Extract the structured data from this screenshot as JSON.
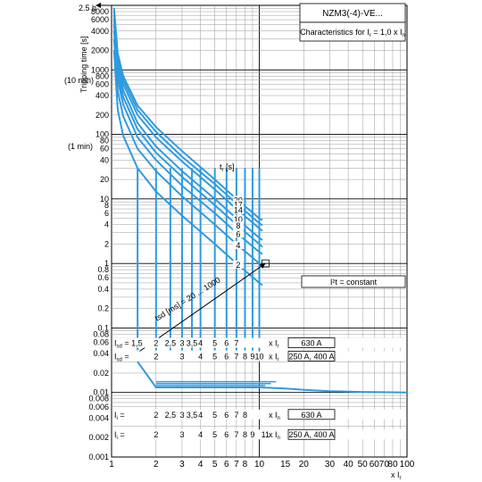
{
  "chart_data": {
    "type": "line",
    "title": "NZM3(-4)-VE...",
    "subtitle_main": "Characteristics for I",
    "subtitle_sub1": "r",
    "subtitle_mid": " = 1,0 x I",
    "subtitle_sub2": "n",
    "ylabel_main": "Tripping time [s]",
    "ylabel_top": "2.5 h",
    "ylabel_10min": "(10 min)",
    "ylabel_1min": "(1 min)",
    "xlabel": "x I",
    "xlabel_sub": "r",
    "x_scale": "log",
    "y_scale": "log",
    "xlim": [
      1,
      100
    ],
    "ylim": [
      0.001,
      10000
    ],
    "grid": true,
    "x_ticks": [
      "1",
      "2",
      "3",
      "4",
      "5",
      "6",
      "7",
      "8",
      "10",
      "15",
      "20",
      "30",
      "40",
      "50",
      "60",
      "70",
      "80",
      "100"
    ],
    "x_tick_values": [
      1,
      2,
      3,
      4,
      5,
      6,
      7,
      8,
      10,
      15,
      20,
      30,
      40,
      50,
      60,
      70,
      80,
      100
    ],
    "y_ticks": [
      "8000",
      "6000",
      "4000",
      "2000",
      "1000",
      "800",
      "600",
      "400",
      "200",
      "100",
      "80",
      "60",
      "40",
      "20",
      "10",
      "8",
      "6",
      "4",
      "2",
      "1",
      "0.8",
      "0.6",
      "0.4",
      "0.2",
      "0.1",
      "0.08",
      "0.06",
      "0.04",
      "0.02",
      "0.01",
      "0.008",
      "0.006",
      "0.004",
      "0.002",
      "0.001"
    ],
    "y_tick_values": [
      8000,
      6000,
      4000,
      2000,
      1000,
      800,
      600,
      400,
      200,
      100,
      80,
      60,
      40,
      20,
      10,
      8,
      6,
      4,
      2,
      1,
      0.8,
      0.6,
      0.4,
      0.2,
      0.1,
      0.08,
      0.06,
      0.04,
      0.02,
      0.01,
      0.008,
      0.006,
      0.004,
      0.002,
      0.001
    ],
    "tr_label": "t",
    "tr_sub": "r",
    "tr_unit": " [s]",
    "tr_values": [
      "20",
      "17",
      "14",
      "10",
      "8",
      "6",
      "4",
      "2"
    ],
    "tsd_label": "tsd [ms] = 20 ... 1000",
    "i2t_label": "I²t = constant",
    "tol_label": "I²t",
    "series": [
      {
        "tr": 20,
        "x": [
          1.04,
          1.1,
          1.2,
          1.5,
          2,
          3,
          5,
          7,
          10,
          10.5
        ],
        "y": [
          9000,
          1800,
          800,
          280,
          130,
          55,
          20,
          10,
          5,
          4.7
        ]
      },
      {
        "tr": 17,
        "x": [
          1.04,
          1.1,
          1.2,
          1.5,
          2,
          3,
          5,
          7,
          10,
          10.5
        ],
        "y": [
          8000,
          1600,
          700,
          240,
          110,
          45,
          17,
          8.5,
          4.2,
          3.9
        ]
      },
      {
        "tr": 14,
        "x": [
          1.04,
          1.1,
          1.2,
          1.5,
          2,
          3,
          5,
          7,
          10,
          10.5
        ],
        "y": [
          7000,
          1400,
          600,
          200,
          90,
          38,
          14,
          7,
          3.5,
          3.2
        ]
      },
      {
        "tr": 10,
        "x": [
          1.04,
          1.1,
          1.2,
          1.5,
          2,
          3,
          5,
          7,
          10,
          10.5
        ],
        "y": [
          6000,
          1100,
          480,
          150,
          65,
          27,
          10,
          5,
          2.5,
          2.3
        ]
      },
      {
        "tr": 8,
        "x": [
          1.04,
          1.1,
          1.2,
          1.5,
          2,
          3,
          5,
          7,
          10,
          10.5
        ],
        "y": [
          5000,
          900,
          380,
          120,
          52,
          22,
          8,
          4,
          2,
          1.8
        ]
      },
      {
        "tr": 6,
        "x": [
          1.04,
          1.1,
          1.2,
          1.5,
          2,
          3,
          5,
          7,
          10,
          10.5
        ],
        "y": [
          4000,
          700,
          290,
          90,
          40,
          16,
          6,
          3,
          1.5,
          1.4
        ]
      },
      {
        "tr": 4,
        "x": [
          1.04,
          1.1,
          1.2,
          1.5,
          2,
          3,
          5,
          7,
          10,
          10.5
        ],
        "y": [
          3000,
          470,
          190,
          60,
          27,
          11,
          4,
          2,
          1,
          0.9
        ]
      },
      {
        "tr": 2,
        "x": [
          1.04,
          1.1,
          1.2,
          1.5,
          2,
          3,
          5,
          7,
          10,
          10.5
        ],
        "y": [
          2000,
          240,
          95,
          30,
          13,
          5.5,
          2,
          1,
          0.5,
          0.46
        ]
      }
    ],
    "isd_verticals_x": [
      1.5,
      2,
      2.5,
      3,
      3.5,
      4,
      5,
      6,
      7,
      8,
      9,
      10
    ],
    "isd_verticals_top_y": 30,
    "isd_verticals_bottom_y": 0.045,
    "lower_curve": {
      "x": [
        1.5,
        2,
        10,
        15,
        20,
        30,
        50,
        70,
        100
      ],
      "y": [
        0.03,
        0.012,
        0.012,
        0.0115,
        0.011,
        0.0105,
        0.0102,
        0.0101,
        0.01
      ]
    },
    "tsd_arrow": {
      "x1": 1.35,
      "y1": 0.035,
      "x2": 11,
      "y2": 1.0
    },
    "rows": [
      {
        "key": "isd_630",
        "label": "I",
        "label_sub": "sd",
        "eq": " = 1,5",
        "values": [
          "2",
          "2,5",
          "3",
          "3,5",
          "4",
          "5",
          "6",
          "7"
        ],
        "values_x": [
          2,
          2.5,
          3,
          3.5,
          4,
          5,
          6,
          7
        ],
        "unit": "x I",
        "unit_sub": "r",
        "rating": "630 A",
        "y": 0.058
      },
      {
        "key": "isd_250",
        "label": "I",
        "label_sub": "sd",
        "eq": " =",
        "values": [
          "2",
          "3",
          "4",
          "5",
          "6",
          "7",
          "8",
          "9",
          "10"
        ],
        "values_x": [
          2,
          3,
          4,
          5,
          6,
          7,
          8,
          9,
          10
        ],
        "unit": "x I",
        "unit_sub": "r",
        "rating": "250 A, 400 A",
        "y": 0.036
      },
      {
        "key": "ii_630",
        "label": "I",
        "label_sub": "i",
        "eq": " =",
        "values": [
          "2",
          "2,5",
          "3",
          "3,5",
          "4",
          "5",
          "6",
          "7",
          "8"
        ],
        "values_x": [
          2,
          2.5,
          3,
          3.5,
          4,
          5,
          6,
          7,
          8
        ],
        "unit": "x I",
        "unit_sub": "n",
        "rating": "630 A",
        "y": 0.0045
      },
      {
        "key": "ii_250",
        "label": "I",
        "label_sub": "i",
        "eq": " =",
        "values": [
          "2",
          "3",
          "4",
          "5",
          "6",
          "7",
          "8",
          "9",
          "11"
        ],
        "values_x": [
          2,
          3,
          4,
          5,
          6,
          7,
          8,
          9,
          11
        ],
        "unit": "x I",
        "unit_sub": "n",
        "rating": "250 A, 400 A",
        "y": 0.0022
      }
    ],
    "line_color": "#2f9be0",
    "grid_color": "#9a9a9a"
  }
}
